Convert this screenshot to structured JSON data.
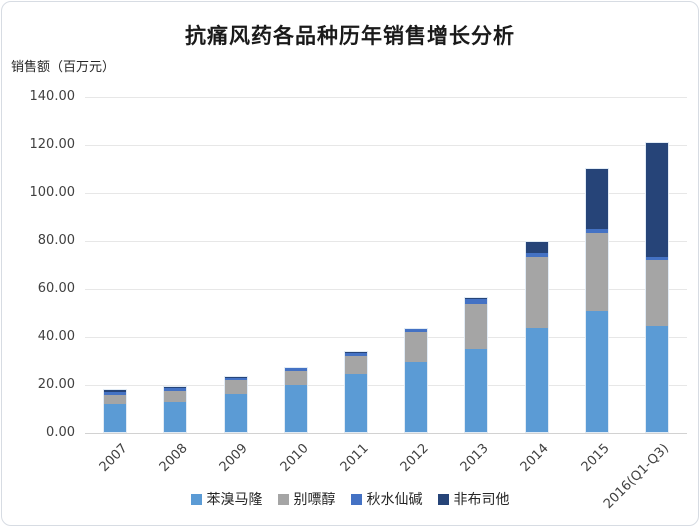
{
  "chart_data": {
    "type": "bar",
    "stacked": true,
    "title": "抗痛风药各品种历年销售增长分析",
    "ylabel": "销售额（百万元）",
    "xlabel": "",
    "categories": [
      "2007",
      "2008",
      "2009",
      "2010",
      "2011",
      "2012",
      "2013",
      "2014",
      "2015",
      "2016(Q1-Q3)"
    ],
    "series": [
      {
        "name": "苯溴马隆",
        "color": "#5B9BD5",
        "values": [
          11.5,
          12.5,
          16.0,
          19.5,
          24.0,
          29.0,
          34.5,
          43.5,
          50.5,
          44.0
        ]
      },
      {
        "name": "别嘌醇",
        "color": "#A5A5A5",
        "values": [
          4.0,
          4.5,
          5.5,
          6.0,
          7.5,
          12.5,
          19.0,
          29.5,
          32.5,
          27.5
        ]
      },
      {
        "name": "秋水仙碱",
        "color": "#4472C4",
        "values": [
          1.2,
          1.2,
          1.0,
          1.0,
          1.5,
          1.5,
          2.0,
          1.5,
          1.5,
          1.5
        ]
      },
      {
        "name": "非布司他",
        "color": "#264478",
        "values": [
          1.0,
          0.5,
          0.5,
          0.0,
          0.5,
          0.0,
          0.5,
          4.5,
          25.0,
          47.5
        ]
      }
    ],
    "totals": [
      17.7,
      18.7,
      23.0,
      26.5,
      33.5,
      43.0,
      56.0,
      79.0,
      109.5,
      120.5
    ],
    "ylim": [
      0,
      140
    ],
    "ytick_step": 20,
    "ytick_labels": [
      "0.00",
      "20.00",
      "40.00",
      "60.00",
      "80.00",
      "100.00",
      "120.00",
      "140.00"
    ],
    "grid": true,
    "legend_position": "bottom",
    "x_label_rotation": -45
  }
}
